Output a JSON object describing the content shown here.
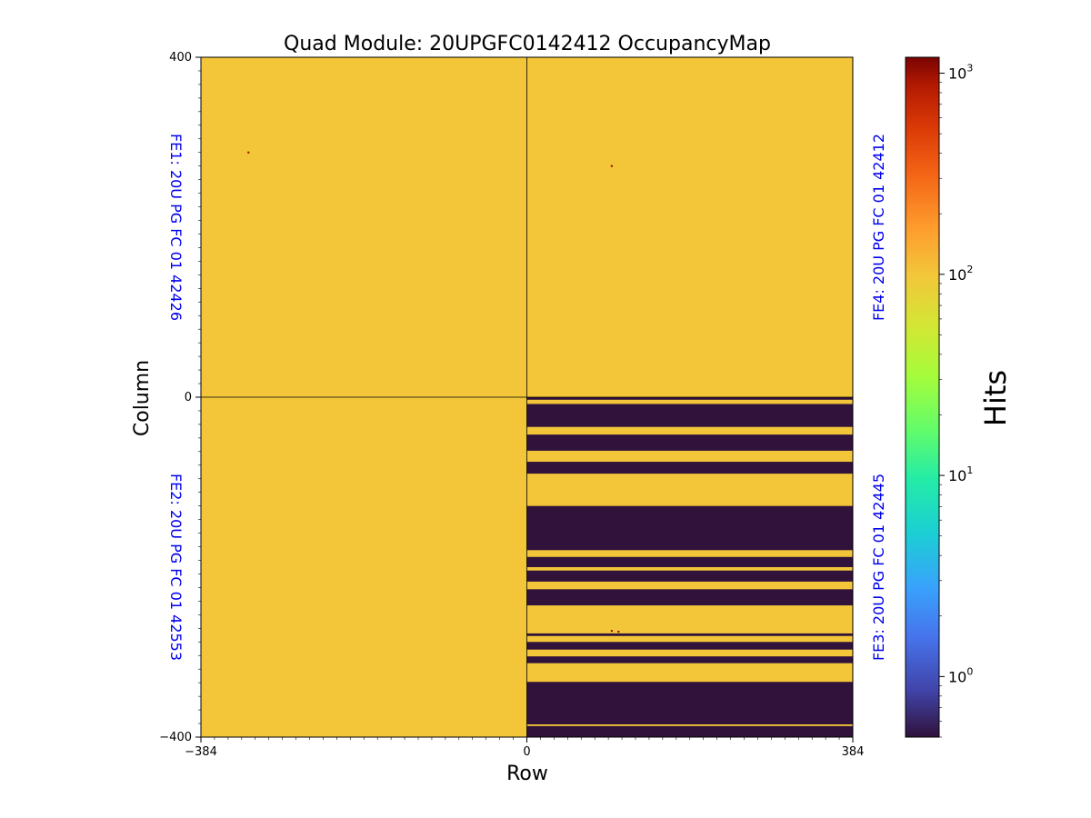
{
  "chart_data": {
    "type": "heatmap",
    "title": "Quad Module: 20UPGFC0142412 OccupancyMap",
    "xlabel": "Row",
    "ylabel": "Column",
    "xlim": [
      -384,
      384
    ],
    "ylim": [
      -400,
      400
    ],
    "x_ticks": [
      "−384",
      "0",
      "384"
    ],
    "y_ticks": [
      "400",
      "0",
      "−400"
    ],
    "colorbar": {
      "label": "Hits",
      "scale": "log",
      "range": [
        0.5,
        1200
      ],
      "colormap": "turbo",
      "ticks": [
        {
          "value": 1,
          "base": "10",
          "exp": "0"
        },
        {
          "value": 10,
          "base": "10",
          "exp": "1"
        },
        {
          "value": 100,
          "base": "10",
          "exp": "2"
        },
        {
          "value": 1000,
          "base": "10",
          "exp": "3"
        }
      ]
    },
    "quadrants": [
      {
        "name": "FE1",
        "label": "FE1: 20U PG FC 01 42426",
        "x_range": [
          -384,
          0
        ],
        "y_range": [
          0,
          400
        ],
        "uniform_hits": 100
      },
      {
        "name": "FE4",
        "label": "FE4: 20U PG FC 01 42412",
        "x_range": [
          0,
          384
        ],
        "y_range": [
          0,
          400
        ],
        "uniform_hits": 100
      },
      {
        "name": "FE2",
        "label": "FE2: 20U PG FC 01 42553",
        "x_range": [
          -384,
          0
        ],
        "y_range": [
          -400,
          0
        ],
        "uniform_hits": 100
      },
      {
        "name": "FE3",
        "label": "FE3: 20U PG FC 01 42445",
        "x_range": [
          0,
          384
        ],
        "y_range": [
          -400,
          0
        ],
        "uniform_hits": 100,
        "dead_bands_y": [
          [
            -3,
            0
          ],
          [
            -31,
            -8
          ],
          [
            -35,
            -31
          ],
          [
            -63,
            -44
          ],
          [
            -90,
            -76
          ],
          [
            -180,
            -128
          ],
          [
            -200,
            -188
          ],
          [
            -217,
            -204
          ],
          [
            -245,
            -226
          ],
          [
            -281,
            -278
          ],
          [
            -297,
            -288
          ],
          [
            -313,
            -305
          ],
          [
            -385,
            -335
          ],
          [
            -400,
            -387
          ]
        ],
        "dead_band_hits": 0.5
      }
    ],
    "hot_pixels": [
      {
        "x": -328,
        "y": 288
      },
      {
        "x": 100,
        "y": 272
      },
      {
        "x": 100,
        "y": -275
      },
      {
        "x": 108,
        "y": -276
      }
    ]
  }
}
